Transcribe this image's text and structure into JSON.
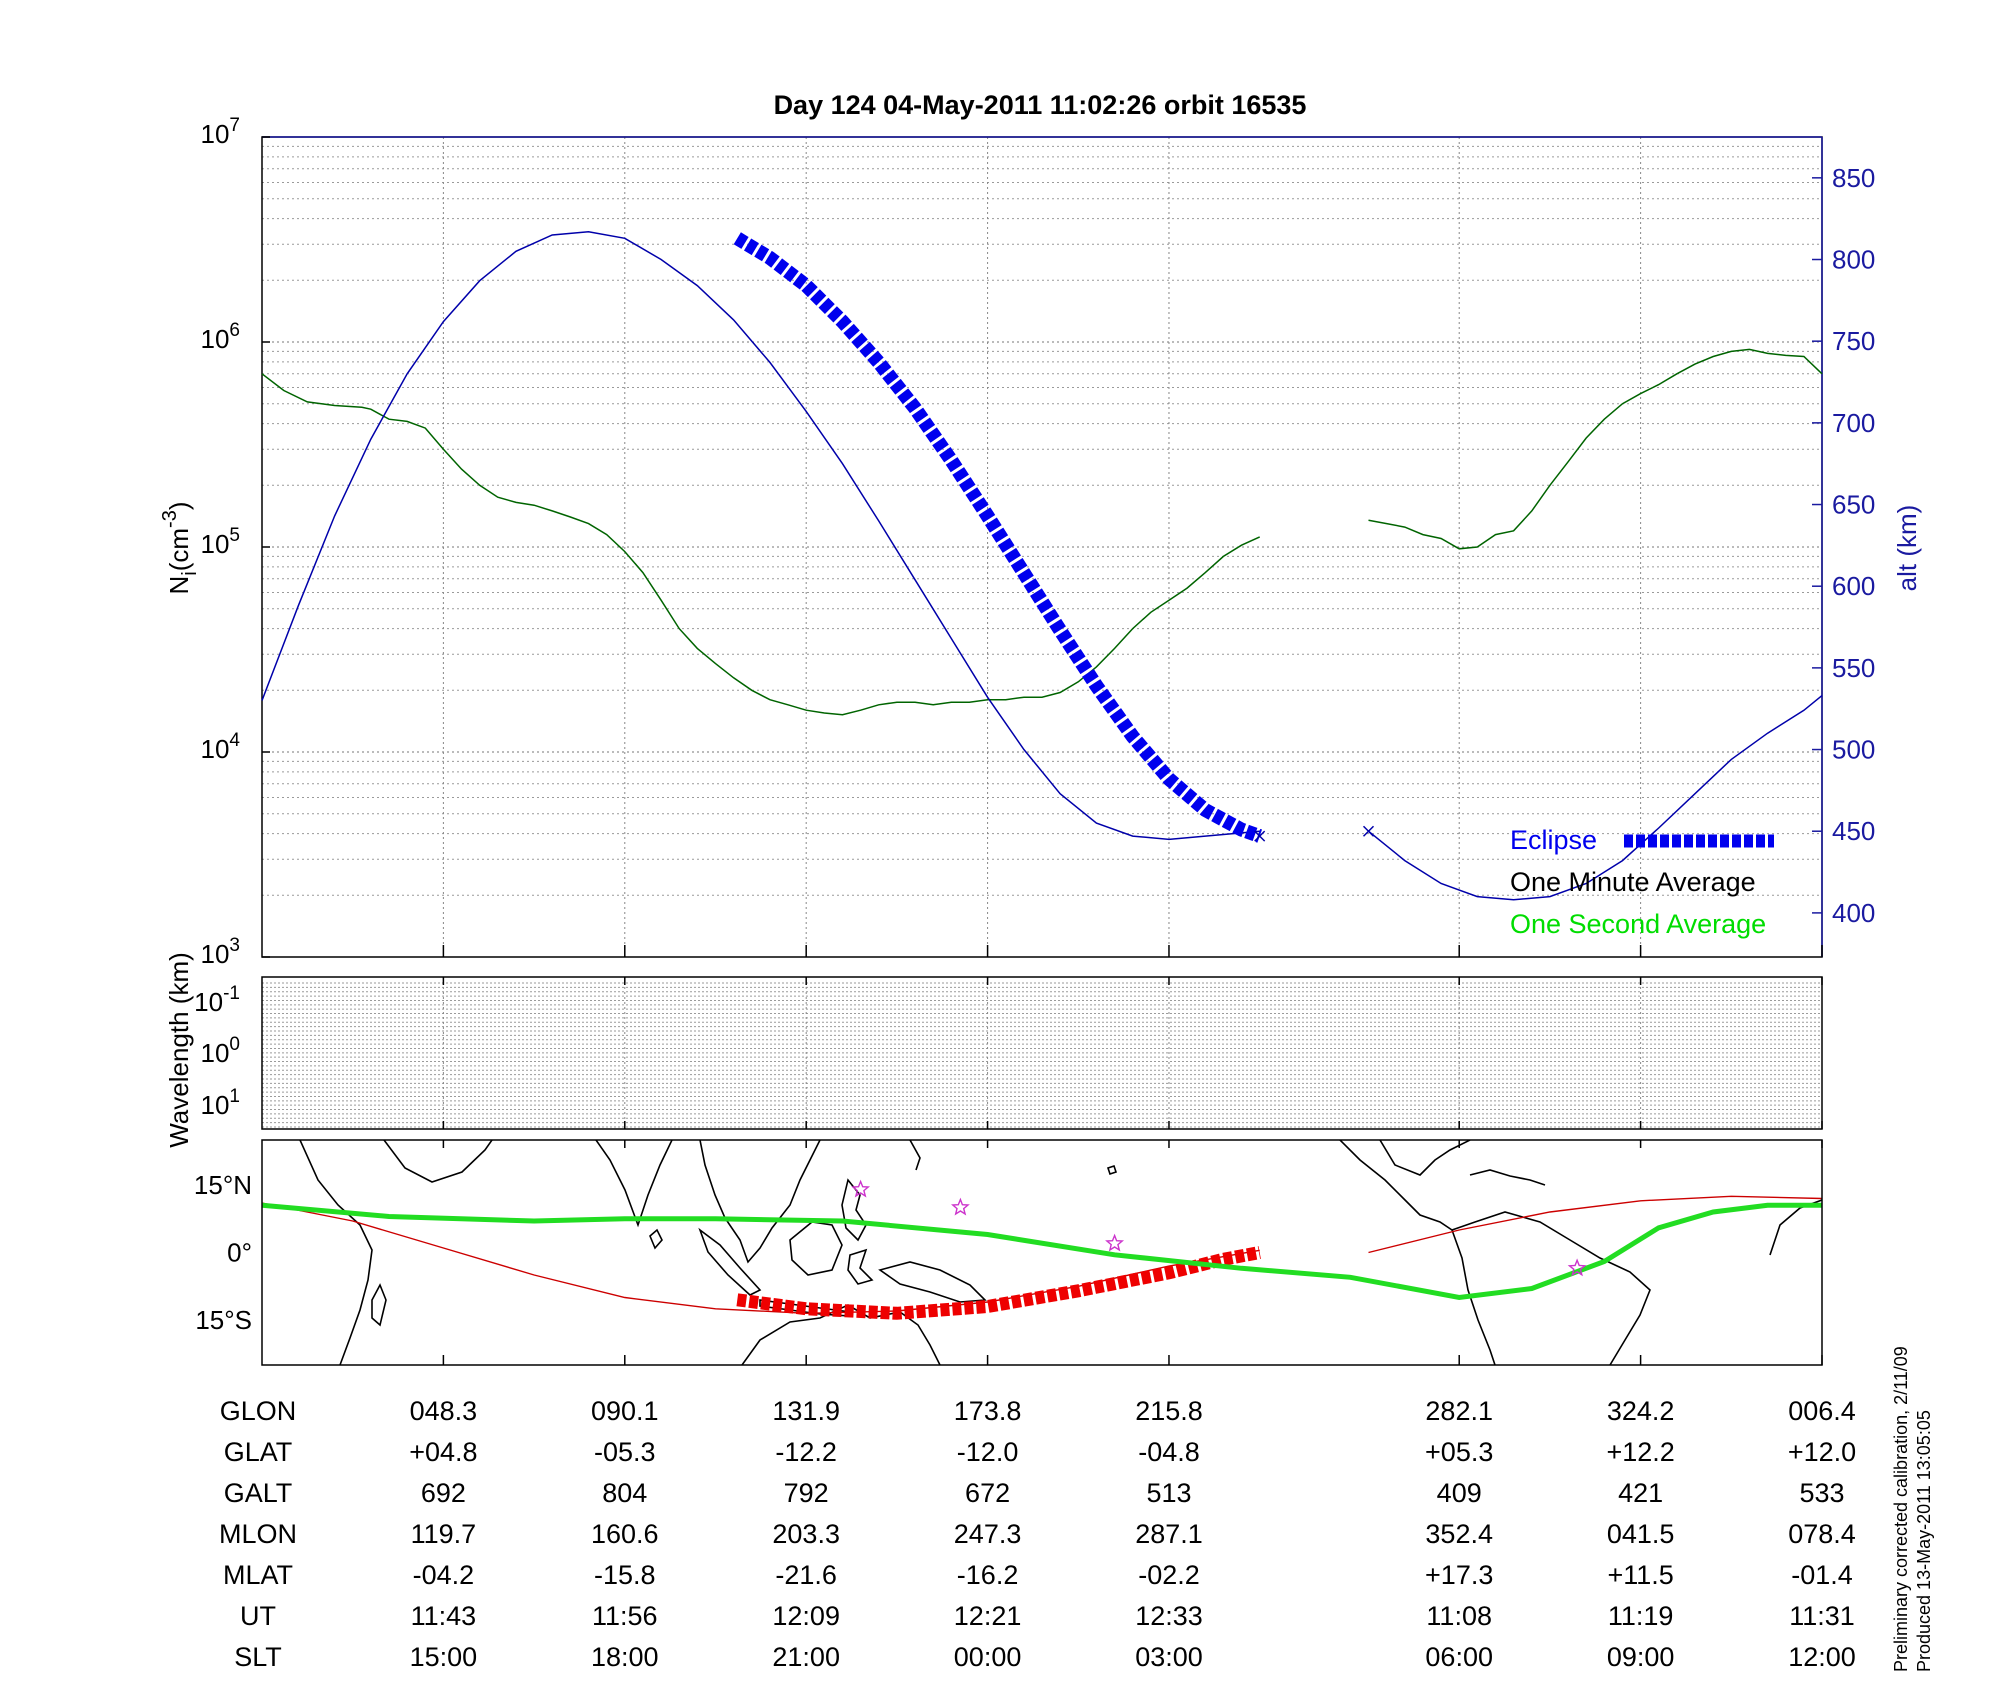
{
  "chart_data": [
    {
      "type": "line",
      "panel": "density",
      "title": "Day 124  04-May-2011 11:02:26   orbit 16535",
      "ylabel": "N",
      "ylabel_sub": "i",
      "ylabel_unit_prefix": "(cm",
      "ylabel_unit_exp": "-3",
      "ylabel_unit_suffix": ")",
      "yscale": "log",
      "ylim": [
        1000,
        10000000
      ],
      "y_ticks": [
        {
          "base": "10",
          "exp": "3",
          "value": 1000
        },
        {
          "base": "10",
          "exp": "4",
          "value": 10000
        },
        {
          "base": "10",
          "exp": "5",
          "value": 100000
        },
        {
          "base": "10",
          "exp": "6",
          "value": 1000000
        },
        {
          "base": "10",
          "exp": "7",
          "value": 10000000
        }
      ],
      "y2label": "alt (km)",
      "y2lim": [
        373,
        875
      ],
      "y2_ticks": [
        "400",
        "450",
        "500",
        "550",
        "600",
        "650",
        "700",
        "750",
        "800",
        "850"
      ],
      "xlim": [
        0,
        8.6
      ],
      "x_tick_positions": [
        1,
        2,
        3,
        4,
        5,
        6.6,
        7.6,
        8.6
      ],
      "grid": true,
      "legend": {
        "placement": "bottom-right",
        "entries": [
          {
            "label": "Eclipse",
            "color": "#0000ee"
          },
          {
            "label": "One Minute Average",
            "color": "#000000"
          },
          {
            "label": "One Second Average",
            "color": "#00dd00"
          }
        ]
      },
      "series": [
        {
          "role": "ion-density-segment-1",
          "axis": "left",
          "color": "#006400",
          "points": [
            [
              0.0,
              700000
            ],
            [
              0.12,
              580000
            ],
            [
              0.25,
              510000
            ],
            [
              0.4,
              490000
            ],
            [
              0.55,
              480000
            ],
            [
              0.6,
              470000
            ],
            [
              0.7,
              420000
            ],
            [
              0.8,
              410000
            ],
            [
              0.9,
              380000
            ],
            [
              1.0,
              300000
            ],
            [
              1.1,
              240000
            ],
            [
              1.2,
              200000
            ],
            [
              1.3,
              175000
            ],
            [
              1.4,
              165000
            ],
            [
              1.5,
              160000
            ],
            [
              1.6,
              150000
            ],
            [
              1.7,
              140000
            ],
            [
              1.8,
              130000
            ],
            [
              1.9,
              115000
            ],
            [
              2.0,
              95000
            ],
            [
              2.1,
              75000
            ],
            [
              2.2,
              55000
            ],
            [
              2.3,
              40000
            ],
            [
              2.4,
              32000
            ],
            [
              2.5,
              27000
            ],
            [
              2.6,
              23000
            ],
            [
              2.7,
              20000
            ],
            [
              2.8,
              18000
            ],
            [
              2.9,
              17000
            ],
            [
              3.0,
              16000
            ],
            [
              3.1,
              15500
            ],
            [
              3.2,
              15200
            ],
            [
              3.3,
              16000
            ],
            [
              3.4,
              17000
            ],
            [
              3.5,
              17500
            ],
            [
              3.6,
              17500
            ],
            [
              3.7,
              17000
            ],
            [
              3.8,
              17500
            ],
            [
              3.9,
              17500
            ],
            [
              4.0,
              18000
            ],
            [
              4.1,
              18000
            ],
            [
              4.2,
              18500
            ],
            [
              4.3,
              18500
            ],
            [
              4.4,
              19500
            ],
            [
              4.5,
              22000
            ],
            [
              4.6,
              26000
            ],
            [
              4.7,
              32000
            ],
            [
              4.8,
              40000
            ],
            [
              4.9,
              48000
            ],
            [
              5.0,
              55000
            ],
            [
              5.1,
              63000
            ],
            [
              5.2,
              75000
            ],
            [
              5.3,
              90000
            ],
            [
              5.4,
              102000
            ],
            [
              5.5,
              112000
            ]
          ]
        },
        {
          "role": "ion-density-segment-2",
          "axis": "left",
          "color": "#006400",
          "points": [
            [
              6.1,
              135000
            ],
            [
              6.2,
              130000
            ],
            [
              6.3,
              125000
            ],
            [
              6.4,
              115000
            ],
            [
              6.5,
              110000
            ],
            [
              6.6,
              98000
            ],
            [
              6.7,
              100000
            ],
            [
              6.8,
              115000
            ],
            [
              6.9,
              120000
            ],
            [
              7.0,
              150000
            ],
            [
              7.1,
              200000
            ],
            [
              7.2,
              260000
            ],
            [
              7.3,
              340000
            ],
            [
              7.4,
              420000
            ],
            [
              7.5,
              500000
            ],
            [
              7.6,
              560000
            ],
            [
              7.7,
              620000
            ],
            [
              7.8,
              700000
            ],
            [
              7.9,
              780000
            ],
            [
              8.0,
              850000
            ],
            [
              8.1,
              900000
            ],
            [
              8.2,
              920000
            ],
            [
              8.3,
              880000
            ],
            [
              8.4,
              860000
            ],
            [
              8.5,
              850000
            ],
            [
              8.6,
              700000
            ]
          ]
        },
        {
          "role": "altitude-segment-1",
          "axis": "right",
          "color": "#0000aa",
          "points": [
            [
              0.0,
              530
            ],
            [
              0.2,
              588
            ],
            [
              0.4,
              643
            ],
            [
              0.6,
              690
            ],
            [
              0.8,
              730
            ],
            [
              1.0,
              762
            ],
            [
              1.2,
              787
            ],
            [
              1.4,
              805
            ],
            [
              1.6,
              815
            ],
            [
              1.8,
              817
            ],
            [
              2.0,
              813
            ],
            [
              2.2,
              800
            ],
            [
              2.4,
              784
            ],
            [
              2.6,
              763
            ],
            [
              2.8,
              737
            ],
            [
              3.0,
              707
            ],
            [
              3.2,
              675
            ],
            [
              3.4,
              640
            ],
            [
              3.6,
              604
            ],
            [
              3.8,
              568
            ],
            [
              4.0,
              532
            ],
            [
              4.2,
              500
            ],
            [
              4.4,
              473
            ],
            [
              4.6,
              455
            ],
            [
              4.8,
              447
            ],
            [
              5.0,
              445
            ],
            [
              5.2,
              447
            ],
            [
              5.4,
              449
            ],
            [
              5.5,
              450
            ]
          ]
        },
        {
          "role": "altitude-segment-2",
          "axis": "right",
          "color": "#0000aa",
          "points": [
            [
              6.1,
              450
            ],
            [
              6.3,
              432
            ],
            [
              6.5,
              418
            ],
            [
              6.7,
              410
            ],
            [
              6.9,
              408
            ],
            [
              7.1,
              410
            ],
            [
              7.3,
              418
            ],
            [
              7.5,
              432
            ],
            [
              7.7,
              452
            ],
            [
              7.9,
              473
            ],
            [
              8.1,
              494
            ],
            [
              8.3,
              510
            ],
            [
              8.5,
              524
            ],
            [
              8.6,
              533
            ]
          ]
        },
        {
          "role": "eclipse",
          "axis": "right",
          "color": "#0000ee",
          "style": "dashed-thick",
          "points": [
            [
              2.62,
              813
            ],
            [
              2.8,
              801
            ],
            [
              3.0,
              784
            ],
            [
              3.2,
              762
            ],
            [
              3.4,
              737
            ],
            [
              3.6,
              709
            ],
            [
              3.8,
              677
            ],
            [
              4.0,
              643
            ],
            [
              4.2,
              608
            ],
            [
              4.4,
              573
            ],
            [
              4.6,
              539
            ],
            [
              4.8,
              508
            ],
            [
              5.0,
              482
            ],
            [
              5.2,
              463
            ],
            [
              5.4,
              451
            ],
            [
              5.5,
              447
            ]
          ]
        }
      ]
    },
    {
      "type": "line",
      "panel": "wavelength",
      "ylabel": "Wavelength (km)",
      "y_ticks": [
        {
          "base": "10",
          "exp": "-1"
        },
        {
          "base": "10",
          "exp": "0"
        },
        {
          "base": "10",
          "exp": "1"
        }
      ],
      "grid": true,
      "series": []
    },
    {
      "type": "line",
      "panel": "map",
      "y_ticks": [
        "15°N",
        "0°",
        "15°S"
      ],
      "ylim": [
        -25,
        25
      ],
      "xlim": [
        0,
        8.6
      ],
      "series": [
        {
          "role": "orbit-track",
          "color": "#cc0000",
          "points": [
            [
              0.0,
              11
            ],
            [
              0.5,
              7
            ],
            [
              1.0,
              1
            ],
            [
              1.5,
              -5
            ],
            [
              2.0,
              -10
            ],
            [
              2.5,
              -12.5
            ],
            [
              3.0,
              -13.5
            ],
            [
              3.5,
              -13
            ],
            [
              4.0,
              -11
            ],
            [
              4.5,
              -7.5
            ],
            [
              5.0,
              -3
            ],
            [
              5.5,
              0.5
            ]
          ]
        },
        {
          "role": "orbit-track-2",
          "color": "#cc0000",
          "points": [
            [
              6.1,
              0
            ],
            [
              6.6,
              5
            ],
            [
              7.1,
              9
            ],
            [
              7.6,
              11.5
            ],
            [
              8.1,
              12.5
            ],
            [
              8.6,
              12
            ]
          ]
        },
        {
          "role": "eclipse-track",
          "color": "#ee0000",
          "points": [
            [
              2.62,
              -10.5
            ],
            [
              3.0,
              -12.5
            ],
            [
              3.5,
              -13.5
            ],
            [
              4.0,
              -12
            ],
            [
              4.5,
              -8.5
            ],
            [
              5.0,
              -4.5
            ],
            [
              5.3,
              -1.5
            ],
            [
              5.5,
              0
            ]
          ]
        },
        {
          "role": "magnetic-equator",
          "color": "#22dd22",
          "points": [
            [
              0.0,
              10.5
            ],
            [
              0.7,
              8
            ],
            [
              1.5,
              7
            ],
            [
              2.0,
              7.5
            ],
            [
              2.5,
              7.5
            ],
            [
              3.2,
              7
            ],
            [
              4.0,
              4
            ],
            [
              4.7,
              -0.5
            ],
            [
              5.4,
              -3.5
            ],
            [
              6.0,
              -5.5
            ],
            [
              6.6,
              -10
            ],
            [
              7.0,
              -8
            ],
            [
              7.4,
              -2
            ],
            [
              7.7,
              5.5
            ],
            [
              8.0,
              9
            ],
            [
              8.3,
              10.5
            ],
            [
              8.6,
              10.5
            ]
          ]
        },
        {
          "role": "stars",
          "color": "#cc33cc",
          "points": [
            [
              3.3,
              14
            ],
            [
              3.85,
              10
            ],
            [
              4.7,
              2
            ],
            [
              7.25,
              -3.5
            ]
          ]
        }
      ]
    }
  ],
  "table": {
    "rows": [
      {
        "label": "GLON",
        "values": [
          "048.3",
          "090.1",
          "131.9",
          "173.8",
          "215.8",
          "282.1",
          "324.2",
          "006.4"
        ]
      },
      {
        "label": "GLAT",
        "values": [
          "+04.8",
          "-05.3",
          "-12.2",
          "-12.0",
          "-04.8",
          "+05.3",
          "+12.2",
          "+12.0"
        ]
      },
      {
        "label": "GALT",
        "values": [
          "692",
          "804",
          "792",
          "672",
          "513",
          "409",
          "421",
          "533"
        ]
      },
      {
        "label": "MLON",
        "values": [
          "119.7",
          "160.6",
          "203.3",
          "247.3",
          "287.1",
          "352.4",
          "041.5",
          "078.4"
        ]
      },
      {
        "label": "MLAT",
        "values": [
          "-04.2",
          "-15.8",
          "-21.6",
          "-16.2",
          "-02.2",
          "+17.3",
          "+11.5",
          "-01.4"
        ]
      },
      {
        "label": "UT",
        "values": [
          "11:43",
          "11:56",
          "12:09",
          "12:21",
          "12:33",
          "11:08",
          "11:19",
          "11:31"
        ]
      },
      {
        "label": "SLT",
        "values": [
          "15:00",
          "18:00",
          "21:00",
          "00:00",
          "03:00",
          "06:00",
          "09:00",
          "12:00"
        ]
      }
    ]
  },
  "notes": {
    "line1": "Preliminary corrected calibration, 2/11/09",
    "line2": "Produced 13-May-2011 13:05:05"
  },
  "colors": {
    "density": "#006400",
    "altitude": "#0000aa",
    "eclipse": "#0000ee",
    "eclipse_track": "#ee0000",
    "magnetic_equator": "#22dd22",
    "orbit_track": "#cc0000",
    "star": "#cc33cc",
    "axis_right": "#1a1aa0"
  }
}
